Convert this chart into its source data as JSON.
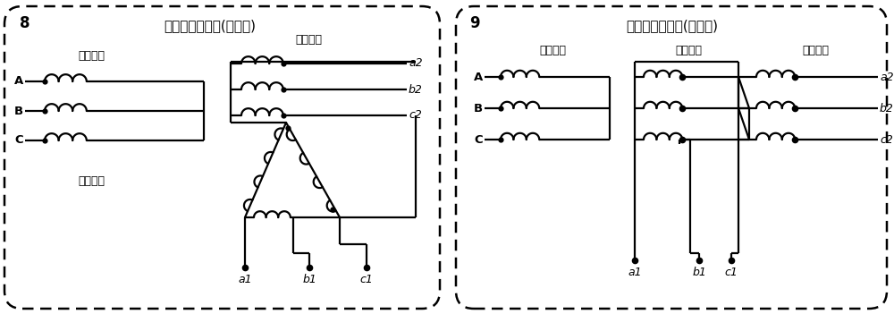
{
  "panel1_title": "特殊设计变压器(感应型)",
  "panel1_num": "8",
  "panel2_title": "特殊设计变压器(自耦型)",
  "panel2_num": "9",
  "label_wangce": "网侧绕组",
  "label_fuze": "负载绕组",
  "label_lubo": "滤波绕组",
  "bg_color": "#ffffff",
  "line_color": "#000000",
  "figsize": [
    10.0,
    3.51
  ],
  "dpi": 100
}
